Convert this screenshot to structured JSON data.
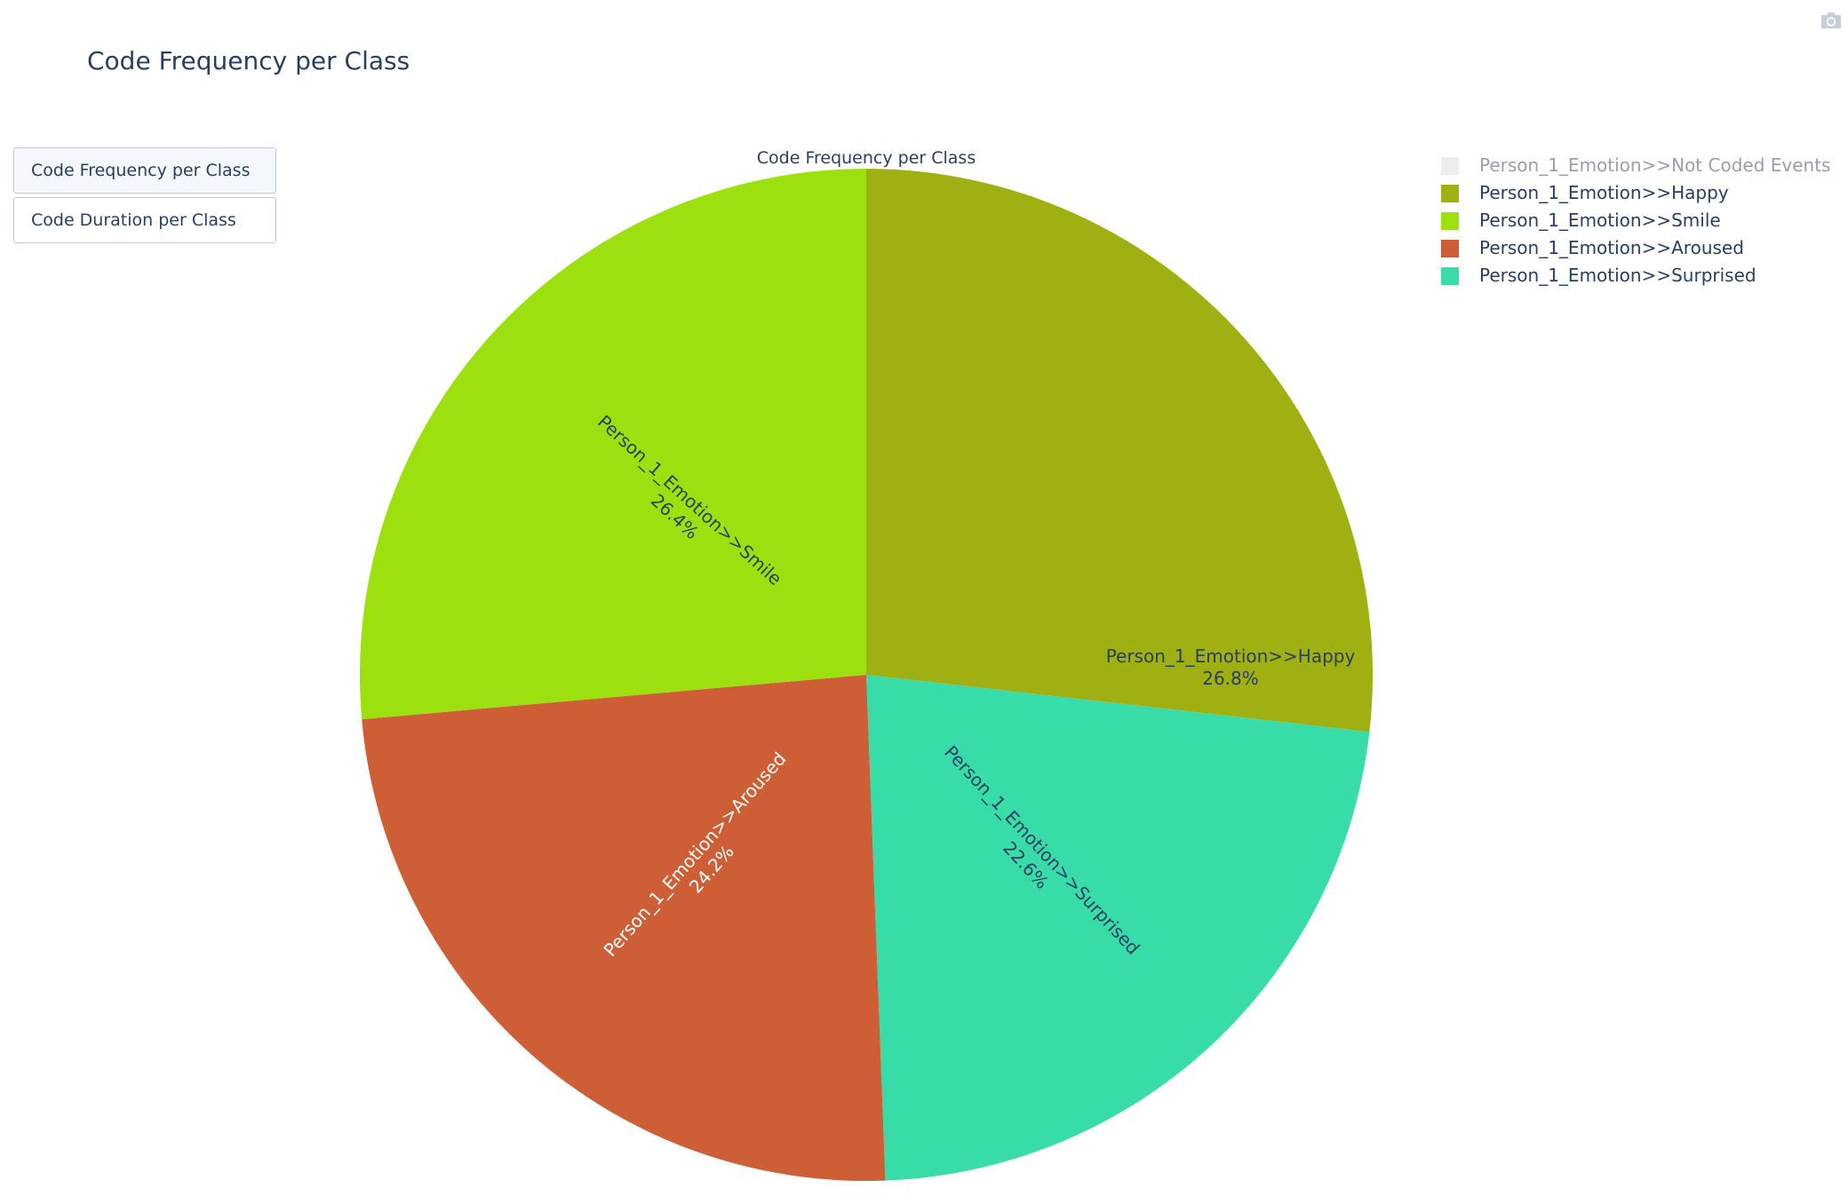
{
  "header": {
    "title": "Code Frequency per Class"
  },
  "toolbar": {
    "camera_icon": "camera-icon"
  },
  "controls": {
    "buttons": [
      {
        "label": "Code Frequency per Class",
        "active": true
      },
      {
        "label": "Code Duration per Class",
        "active": false
      }
    ]
  },
  "chart_data": {
    "type": "pie",
    "title": "Code Frequency per Class",
    "direction": "clockwise",
    "start_angle_deg": 90,
    "legend_position": "top-right",
    "slices": [
      {
        "label": "Person_1_Emotion>>Happy",
        "percent": 26.8,
        "percent_text": "26.8%",
        "color": "#a0af12",
        "text_color": "#2a3f5f"
      },
      {
        "label": "Person_1_Emotion>>Surprised",
        "percent": 22.6,
        "percent_text": "22.6%",
        "color": "#38dca8",
        "text_color": "#2a3f5f"
      },
      {
        "label": "Person_1_Emotion>>Aroused",
        "percent": 24.2,
        "percent_text": "24.2%",
        "color": "#cd5e36",
        "text_color": "#ffffff"
      },
      {
        "label": "Person_1_Emotion>>Smile",
        "percent": 26.4,
        "percent_text": "26.4%",
        "color": "#9de010",
        "text_color": "#2a3f5f"
      }
    ],
    "legend": [
      {
        "label": "Person_1_Emotion>>Not Coded Events",
        "color": "#dcdcdc",
        "hidden": true
      },
      {
        "label": "Person_1_Emotion>>Happy",
        "color": "#a0af12",
        "hidden": false
      },
      {
        "label": "Person_1_Emotion>>Smile",
        "color": "#9de010",
        "hidden": false
      },
      {
        "label": "Person_1_Emotion>>Aroused",
        "color": "#cd5e36",
        "hidden": false
      },
      {
        "label": "Person_1_Emotion>>Surprised",
        "color": "#38dca8",
        "hidden": false
      }
    ]
  }
}
